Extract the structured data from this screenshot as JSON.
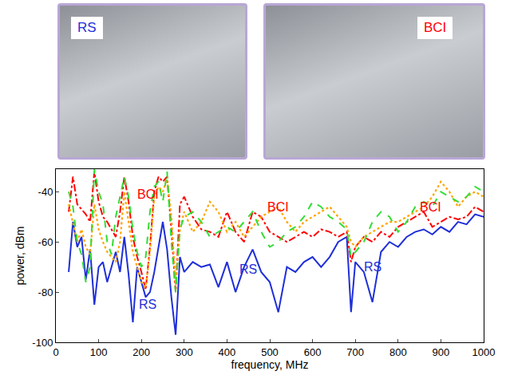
{
  "chart_data": {
    "type": "line",
    "panels": [
      {
        "label": "RS",
        "color": "#1f2fd8"
      },
      {
        "label": "BCI",
        "color": "#ff0000"
      }
    ],
    "x_label": "frequency, MHz",
    "y_label": "power, dBm",
    "xlim": [
      0,
      1000
    ],
    "xticks": [
      0,
      100,
      200,
      300,
      400,
      500,
      600,
      700,
      800,
      900,
      1000
    ],
    "ylim": [
      -100,
      -31
    ],
    "yticks": [
      -100,
      -80,
      -60,
      -40
    ],
    "grid": false,
    "x": [
      30,
      40,
      50,
      60,
      70,
      80,
      90,
      100,
      110,
      120,
      130,
      140,
      150,
      160,
      170,
      180,
      190,
      200,
      210,
      220,
      230,
      240,
      250,
      260,
      270,
      280,
      290,
      300,
      320,
      340,
      360,
      380,
      400,
      420,
      440,
      460,
      480,
      500,
      520,
      540,
      560,
      580,
      600,
      620,
      640,
      660,
      680,
      690,
      700,
      720,
      740,
      760,
      780,
      800,
      820,
      840,
      860,
      880,
      900,
      920,
      940,
      960,
      980,
      1000
    ],
    "series": [
      {
        "color": "#1f2fd8",
        "line_style": "solid",
        "values": [
          -72,
          -52,
          -62,
          -58,
          -75,
          -63,
          -85,
          -70,
          -68,
          -76,
          -70,
          -64,
          -72,
          -58,
          -73,
          -92,
          -70,
          -76,
          -82,
          -80,
          -72,
          -62,
          -52,
          -63,
          -82,
          -97,
          -66,
          -72,
          -68,
          -70,
          -69,
          -78,
          -68,
          -80,
          -70,
          -63,
          -72,
          -76,
          -88,
          -70,
          -72,
          -68,
          -66,
          -70,
          -66,
          -60,
          -58,
          -88,
          -68,
          -72,
          -84,
          -64,
          -60,
          -62,
          -58,
          -56,
          -55,
          -57,
          -54,
          -56,
          -52,
          -53,
          -49,
          -50
        ]
      },
      {
        "color": "#ff0000",
        "line_style": "dashdot",
        "values": [
          -48,
          -34,
          -45,
          -47,
          -49,
          -52,
          -32,
          -44,
          -50,
          -52,
          -55,
          -58,
          -48,
          -34,
          -44,
          -58,
          -66,
          -72,
          -79,
          -62,
          -40,
          -34,
          -36,
          -34,
          -55,
          -80,
          -45,
          -42,
          -50,
          -55,
          -56,
          -58,
          -48,
          -56,
          -60,
          -48,
          -50,
          -56,
          -58,
          -60,
          -58,
          -56,
          -58,
          -55,
          -56,
          -58,
          -56,
          -68,
          -62,
          -58,
          -60,
          -56,
          -58,
          -54,
          -52,
          -50,
          -48,
          -54,
          -52,
          -50,
          -51,
          -50,
          -46,
          -48
        ]
      },
      {
        "color": "#ffa500",
        "line_style": "dot",
        "values": [
          -45,
          -52,
          -60,
          -55,
          -62,
          -65,
          -45,
          -55,
          -60,
          -64,
          -66,
          -68,
          -60,
          -40,
          -52,
          -64,
          -70,
          -76,
          -78,
          -64,
          -42,
          -38,
          -40,
          -35,
          -50,
          -77,
          -55,
          -48,
          -56,
          -52,
          -44,
          -48,
          -56,
          -52,
          -58,
          -54,
          -50,
          -48,
          -46,
          -52,
          -56,
          -52,
          -50,
          -48,
          -46,
          -50,
          -54,
          -60,
          -62,
          -58,
          -56,
          -54,
          -52,
          -52,
          -50,
          -48,
          -46,
          -42,
          -36,
          -40,
          -46,
          -42,
          -40,
          -42
        ]
      },
      {
        "color": "#33dd33",
        "line_style": "dash",
        "values": [
          -40,
          -46,
          -60,
          -65,
          -76,
          -70,
          -31,
          -40,
          -45,
          -60,
          -65,
          -50,
          -42,
          -34,
          -42,
          -55,
          -64,
          -70,
          -66,
          -48,
          -38,
          -36,
          -44,
          -32,
          -60,
          -80,
          -55,
          -50,
          -48,
          -52,
          -58,
          -56,
          -54,
          -56,
          -52,
          -48,
          -56,
          -62,
          -60,
          -56,
          -54,
          -50,
          -44,
          -46,
          -50,
          -52,
          -55,
          -66,
          -64,
          -60,
          -52,
          -48,
          -50,
          -56,
          -52,
          -46,
          -44,
          -46,
          -40,
          -42,
          -44,
          -42,
          -38,
          -40
        ]
      }
    ],
    "annotations": [
      {
        "text": "BCI",
        "x": 215,
        "y": -41,
        "color": "#ff0000"
      },
      {
        "text": "BCI",
        "x": 520,
        "y": -46,
        "color": "#ff0000"
      },
      {
        "text": "BCI",
        "x": 875,
        "y": -46,
        "color": "#ff0000"
      },
      {
        "text": "RS",
        "x": 215,
        "y": -85,
        "color": "#1f2fd8"
      },
      {
        "text": "RS",
        "x": 450,
        "y": -71,
        "color": "#1f2fd8"
      },
      {
        "text": "RS",
        "x": 740,
        "y": -70,
        "color": "#1f2fd8"
      }
    ]
  }
}
